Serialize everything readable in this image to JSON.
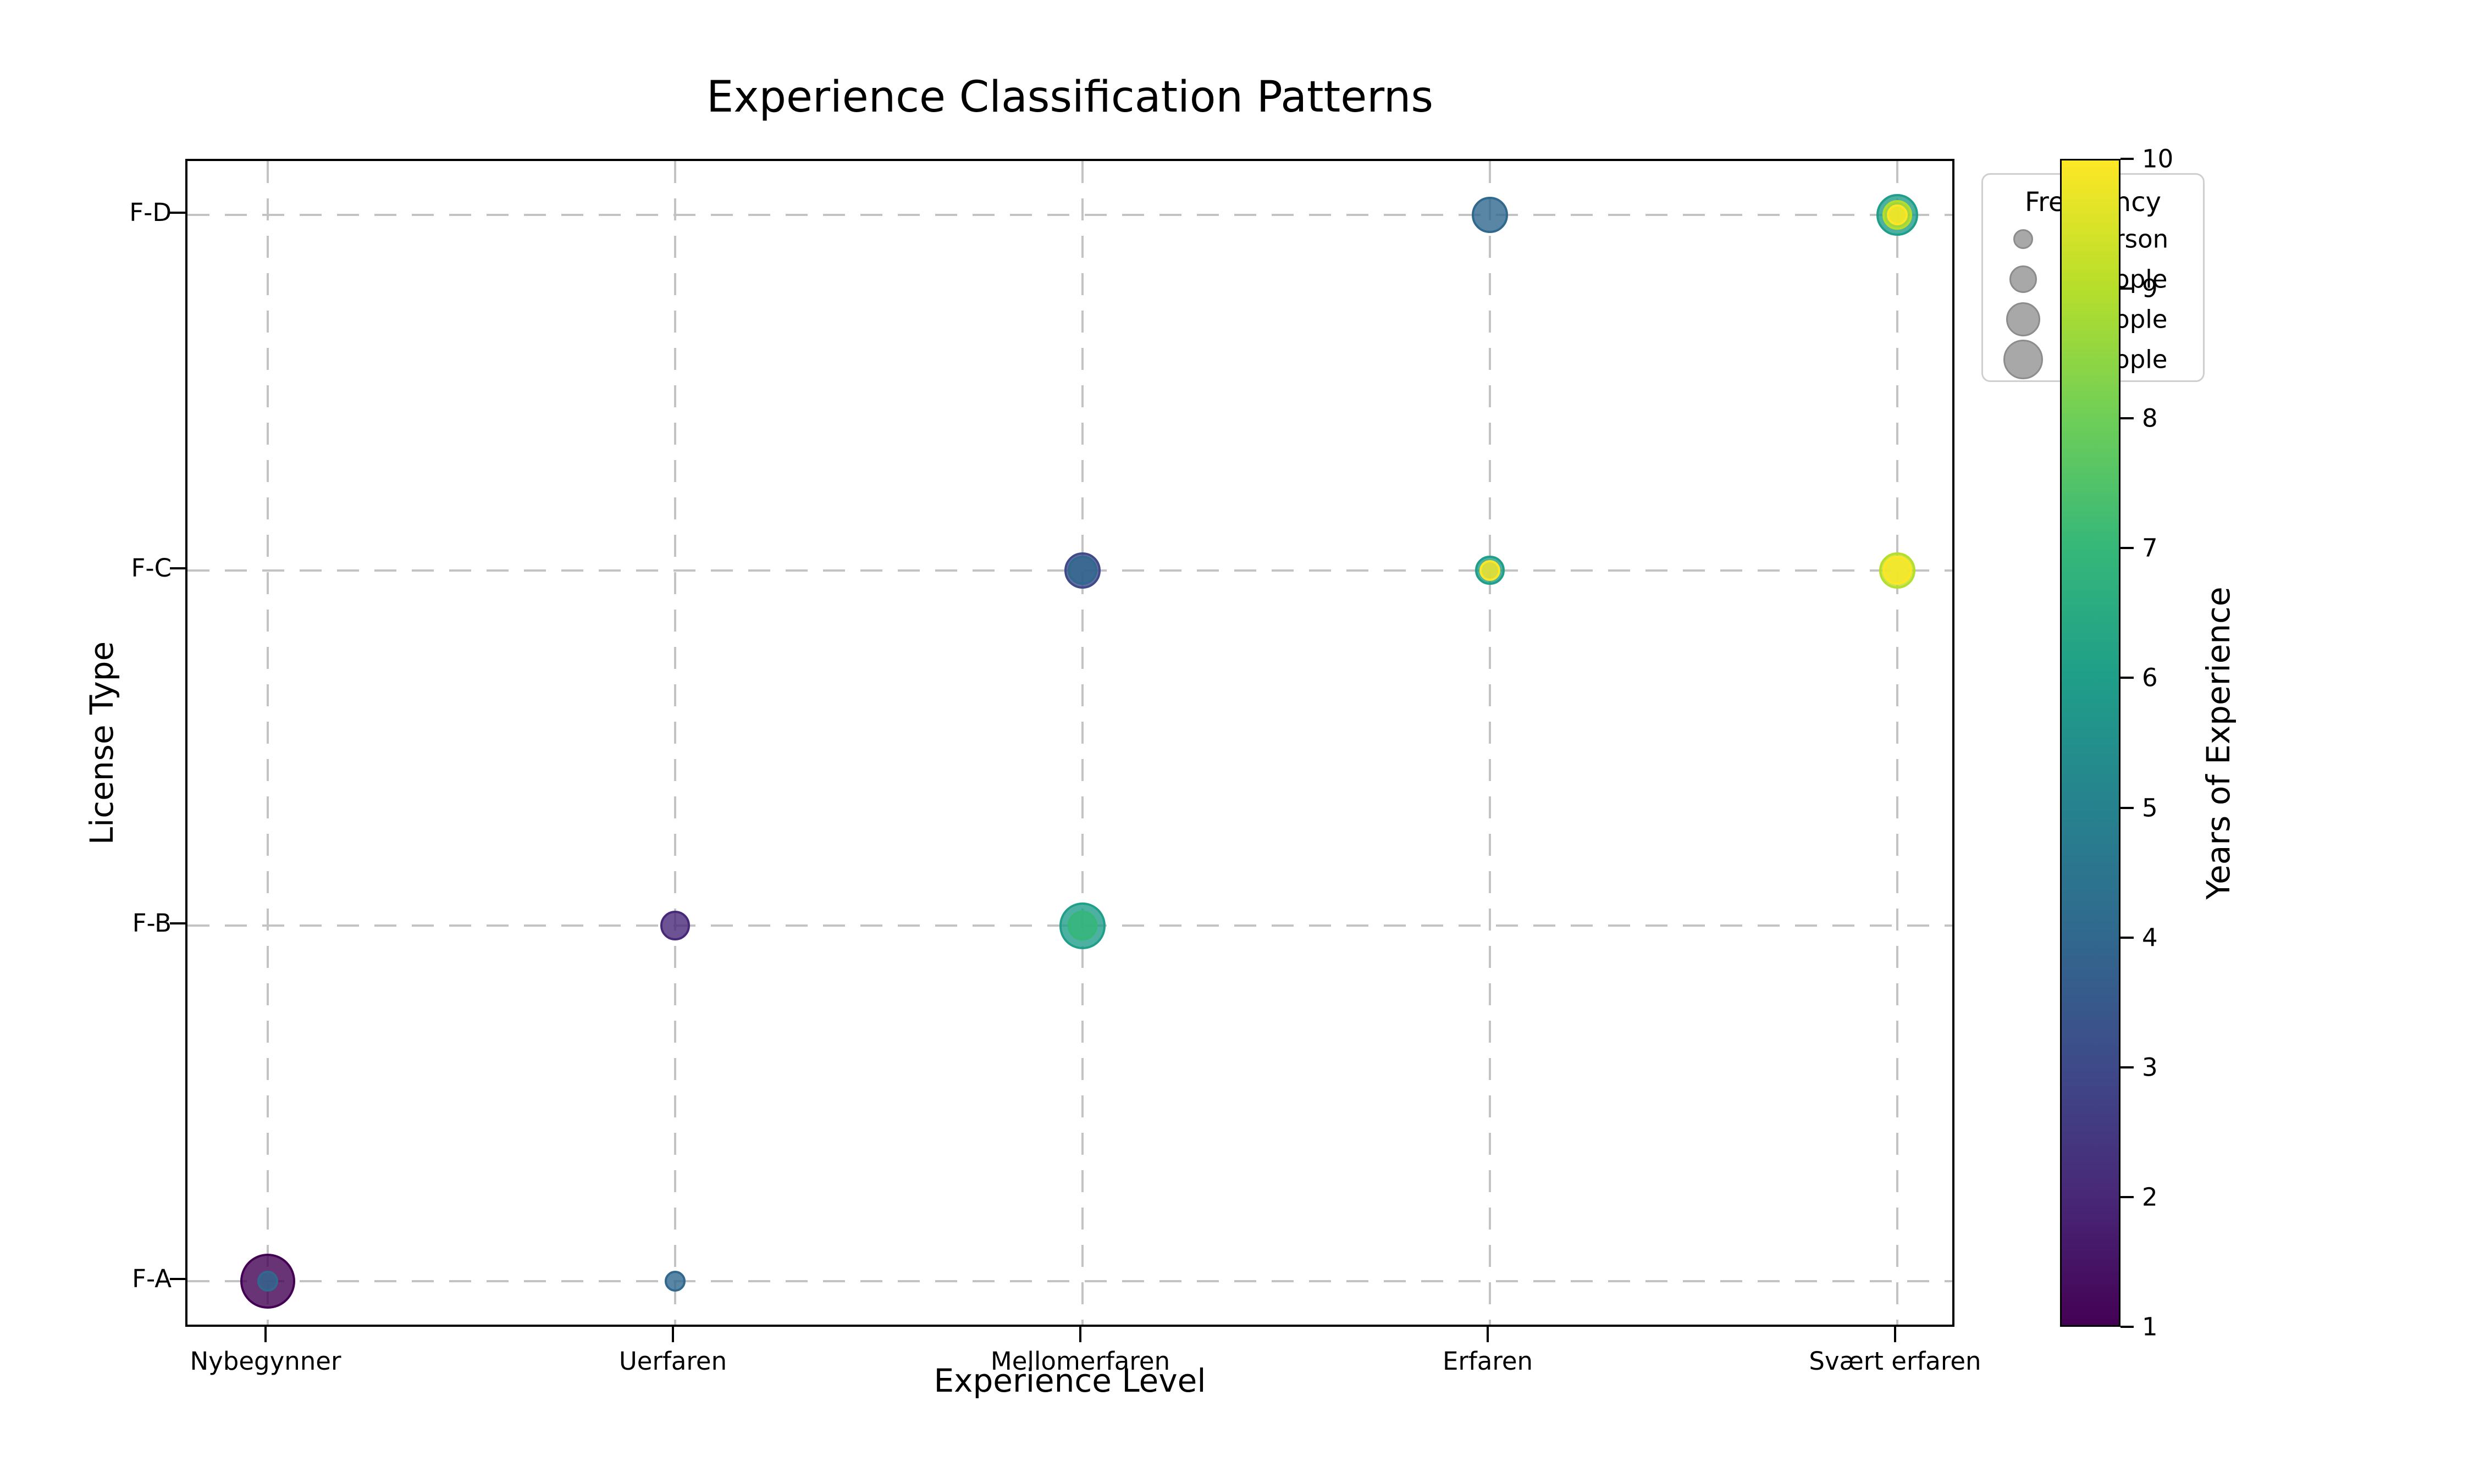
{
  "title": "Experience Classification Patterns",
  "x_axis": {
    "label": "Experience Level",
    "tick_labels": [
      "Nybegynner",
      "Uerfaren",
      "Mellomerfaren",
      "Erfaren",
      "Svært erfaren"
    ]
  },
  "y_axis": {
    "label": "License Type",
    "tick_labels": [
      "F-A",
      "F-B",
      "F-C",
      "F-D"
    ]
  },
  "colorbar": {
    "label": "Years of Experience",
    "min": 1,
    "max": 10,
    "tick_labels": [
      "1",
      "2",
      "3",
      "4",
      "5",
      "6",
      "7",
      "8",
      "9",
      "10"
    ],
    "colormap_viridis": [
      "#440154",
      "#482878",
      "#3e4a89",
      "#31688e",
      "#26828e",
      "#1f9e89",
      "#35b779",
      "#6ece58",
      "#b5de2b",
      "#fde725"
    ]
  },
  "legend": {
    "title": "Frequency",
    "items": [
      {
        "label": "1 person",
        "count": 1
      },
      {
        "label": "2 people",
        "count": 2
      },
      {
        "label": "3 people",
        "count": 3
      },
      {
        "label": "4 people",
        "count": 4
      }
    ],
    "marker_color": "#a8a8a8",
    "marker_edge_color": "#8c8c8c"
  },
  "grid": {
    "visible": true,
    "style": "dashed",
    "color": "#c3c3c3"
  },
  "chart_data": {
    "type": "scatter",
    "x_categories": [
      "Nybegynner",
      "Uerfaren",
      "Mellomerfaren",
      "Erfaren",
      "Svært erfaren"
    ],
    "y_categories": [
      "F-A",
      "F-B",
      "F-C",
      "F-D"
    ],
    "marker_alpha": 0.8,
    "size_encodes": "frequency",
    "color_encodes": "years_of_experience",
    "points": [
      {
        "x": "Nybegynner",
        "y": "F-A",
        "years_of_experience": 1,
        "frequency": 7
      },
      {
        "x": "Nybegynner",
        "y": "F-A",
        "years_of_experience": 4,
        "frequency": 1
      },
      {
        "x": "Uerfaren",
        "y": "F-A",
        "years_of_experience": 4,
        "frequency": 1
      },
      {
        "x": "Uerfaren",
        "y": "F-B",
        "years_of_experience": 2,
        "frequency": 2
      },
      {
        "x": "Mellomerfaren",
        "y": "F-B",
        "years_of_experience": 6,
        "frequency": 5
      },
      {
        "x": "Mellomerfaren",
        "y": "F-B",
        "years_of_experience": 7,
        "frequency": 2
      },
      {
        "x": "Mellomerfaren",
        "y": "F-C",
        "years_of_experience": 3,
        "frequency": 3
      },
      {
        "x": "Mellomerfaren",
        "y": "F-C",
        "years_of_experience": 4,
        "frequency": 2
      },
      {
        "x": "Erfaren",
        "y": "F-C",
        "years_of_experience": 6,
        "frequency": 2
      },
      {
        "x": "Erfaren",
        "y": "F-C",
        "years_of_experience": 10,
        "frequency": 1
      },
      {
        "x": "Erfaren",
        "y": "F-D",
        "years_of_experience": 4,
        "frequency": 3
      },
      {
        "x": "Svært erfaren",
        "y": "F-C",
        "years_of_experience": 9,
        "frequency": 3
      },
      {
        "x": "Svært erfaren",
        "y": "F-C",
        "years_of_experience": 10,
        "frequency": 2
      },
      {
        "x": "Svært erfaren",
        "y": "F-D",
        "years_of_experience": 6,
        "frequency": 4
      },
      {
        "x": "Svært erfaren",
        "y": "F-D",
        "years_of_experience": 9,
        "frequency": 2
      },
      {
        "x": "Svært erfaren",
        "y": "F-D",
        "years_of_experience": 10,
        "frequency": 1
      }
    ]
  }
}
